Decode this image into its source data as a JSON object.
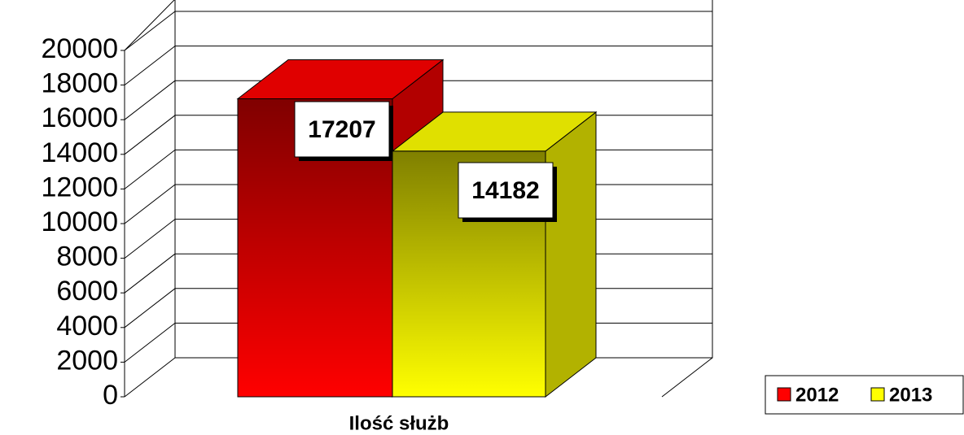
{
  "chart_data": {
    "type": "bar3d",
    "categories": [
      "Ilość służb"
    ],
    "series": [
      {
        "name": "2012",
        "color": "#ff0000",
        "values": [
          17207
        ]
      },
      {
        "name": "2013",
        "color": "#ffff00",
        "values": [
          14182
        ]
      }
    ],
    "ylim": [
      0,
      20000
    ],
    "yticks": [
      0,
      2000,
      4000,
      6000,
      8000,
      10000,
      12000,
      14000,
      16000,
      18000,
      20000
    ],
    "grid": true,
    "legend": "bottom-right"
  }
}
